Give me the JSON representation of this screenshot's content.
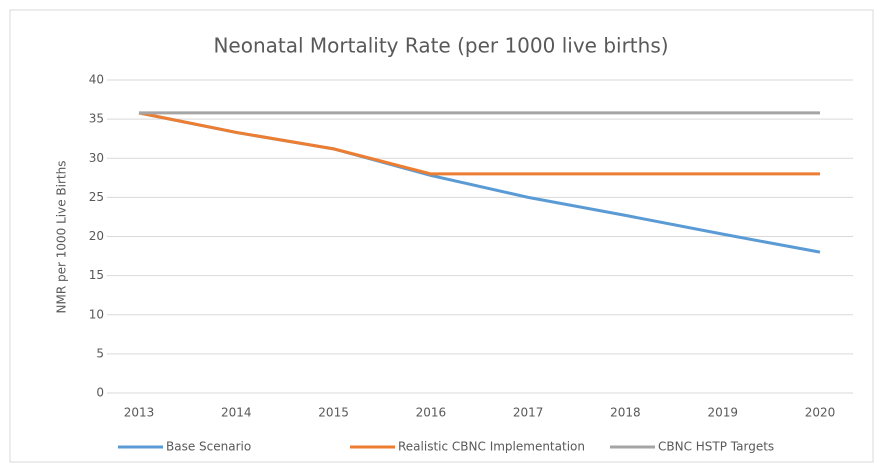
{
  "chart_data": {
    "type": "line",
    "title": "Neonatal Mortality Rate (per 1000 live births)",
    "y_label": "NMR per 1000 Live Births",
    "categories": [
      "2013",
      "2014",
      "2015",
      "2016",
      "2017",
      "2018",
      "2019",
      "2020"
    ],
    "series": [
      {
        "name": "Base Scenario",
        "color": "#5b9bd5",
        "values": [
          35.8,
          33.3,
          31.2,
          27.8,
          25.0,
          22.7,
          20.3,
          18.0
        ]
      },
      {
        "name": "Realistic CBNC Implementation",
        "color": "#ed7d31",
        "values": [
          35.8,
          33.3,
          31.2,
          28.0,
          28.0,
          28.0,
          28.0,
          28.0
        ]
      },
      {
        "name": "CBNC HSTP Targets",
        "color": "#a5a5a5",
        "values": [
          35.8,
          35.8,
          35.8,
          35.8,
          35.8,
          35.8,
          35.8,
          35.8
        ]
      }
    ],
    "ylim": [
      0,
      40
    ],
    "yticks": [
      0,
      5,
      10,
      15,
      20,
      25,
      30,
      35,
      40
    ],
    "grid": true,
    "legend": "bottom"
  }
}
